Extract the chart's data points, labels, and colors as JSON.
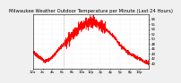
{
  "title": "Milwaukee Weather Outdoor Temperature per Minute (Last 24 Hours)",
  "line_color": "#ff0000",
  "background_color": "#f0f0f0",
  "plot_bg_color": "#ffffff",
  "grid_color": "#cccccc",
  "ylim": [
    38,
    60
  ],
  "yticks": [
    40,
    42,
    44,
    46,
    48,
    50,
    52,
    54,
    56,
    58
  ],
  "num_points": 1440,
  "vline_pos": 0.265,
  "title_fontsize": 3.8,
  "tick_fontsize": 2.8,
  "keypoints_x": [
    0,
    60,
    150,
    220,
    380,
    500,
    600,
    680,
    760,
    820,
    900,
    1000,
    1100,
    1200,
    1320,
    1439
  ],
  "keypoints_y": [
    45,
    43,
    41,
    42,
    48,
    52,
    55,
    57,
    57,
    56,
    54,
    51,
    47,
    44,
    42,
    40
  ]
}
